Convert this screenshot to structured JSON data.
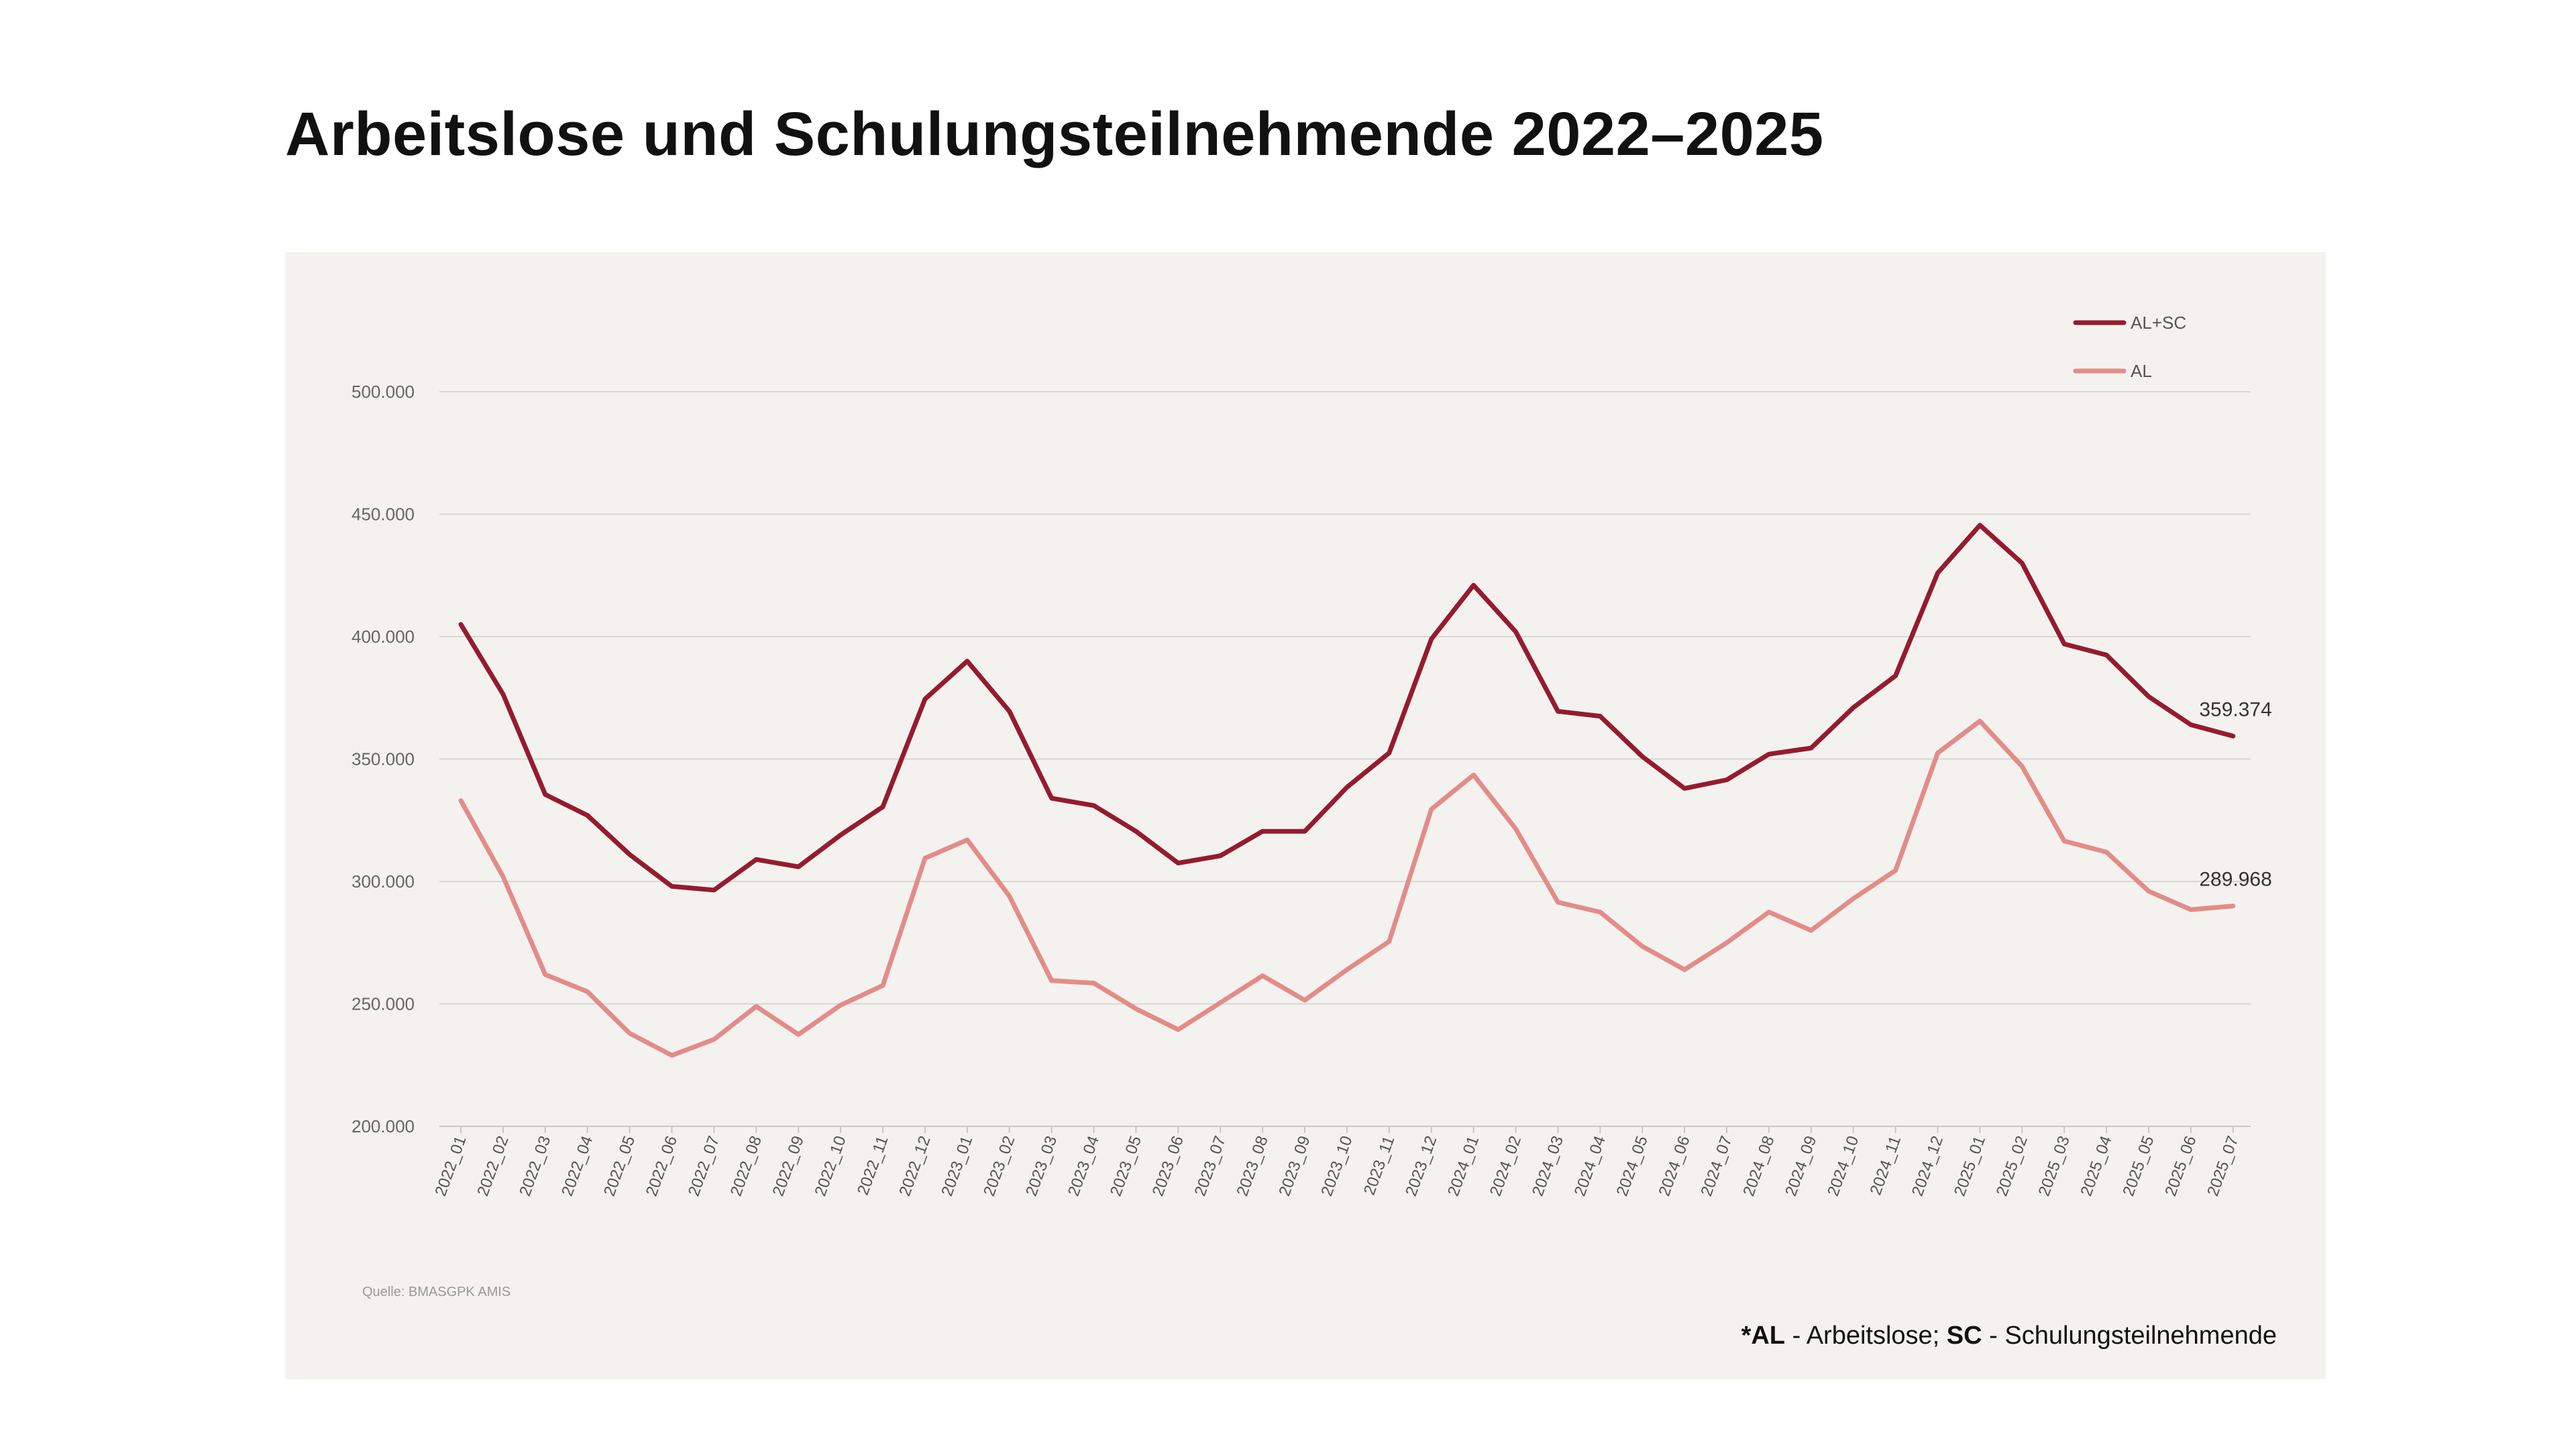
{
  "title": "Arbeitslose und Schulungsteilnehmende 2022–2025",
  "footnote": {
    "part1_bold": "*AL",
    "part1_rest": " - Arbeitslose; ",
    "part2_bold": "SC",
    "part2_rest": " - Schulungsteilnehmende"
  },
  "chart_data": {
    "type": "line",
    "source": "Quelle: BMASGPK AMIS",
    "x": [
      "2022_01",
      "2022_02",
      "2022_03",
      "2022_04",
      "2022_05",
      "2022_06",
      "2022_07",
      "2022_08",
      "2022_09",
      "2022_10",
      "2022_11",
      "2022_12",
      "2023_01",
      "2023_02",
      "2023_03",
      "2023_04",
      "2023_05",
      "2023_06",
      "2023_07",
      "2023_08",
      "2023_09",
      "2023_10",
      "2023_11",
      "2023_12",
      "2024_01",
      "2024_02",
      "2024_03",
      "2024_04",
      "2024_05",
      "2024_06",
      "2024_07",
      "2024_08",
      "2024_09",
      "2024_10",
      "2024_11",
      "2024_12",
      "2025_01",
      "2025_02",
      "2025_03",
      "2025_04",
      "2025_05",
      "2025_06",
      "2025_07"
    ],
    "ylim": [
      200000,
      500000
    ],
    "yticks": [
      200000,
      250000,
      300000,
      350000,
      400000,
      450000,
      500000
    ],
    "ytick_labels": [
      "200.000",
      "250.000",
      "300.000",
      "350.000",
      "400.000",
      "450.000",
      "500.000"
    ],
    "grid": true,
    "legend_position": "top-right",
    "series": [
      {
        "name": "AL+SC",
        "color": "#951b2e",
        "values": [
          405000,
          376500,
          335500,
          327000,
          311000,
          298000,
          296500,
          309000,
          306000,
          319000,
          330500,
          374500,
          390000,
          369500,
          334000,
          331000,
          320500,
          307500,
          310500,
          320500,
          320500,
          338500,
          352500,
          399000,
          421000,
          402000,
          369500,
          367500,
          351000,
          338000,
          341500,
          352000,
          354500,
          371000,
          384000,
          426000,
          445500,
          430000,
          397000,
          392500,
          375500,
          364000,
          359374
        ],
        "end_label": "359.374"
      },
      {
        "name": "AL",
        "color": "#e38c88",
        "values": [
          333000,
          302000,
          262000,
          255000,
          238000,
          229000,
          235500,
          249000,
          237500,
          249500,
          257500,
          309500,
          317000,
          294000,
          259500,
          258500,
          248000,
          239500,
          250500,
          261500,
          251500,
          264000,
          275500,
          329500,
          343500,
          321500,
          291500,
          287500,
          273500,
          264000,
          275000,
          287500,
          280000,
          293000,
          304500,
          352500,
          365500,
          347000,
          316500,
          312000,
          296000,
          288500,
          289968
        ],
        "end_label": "289.968"
      }
    ]
  }
}
